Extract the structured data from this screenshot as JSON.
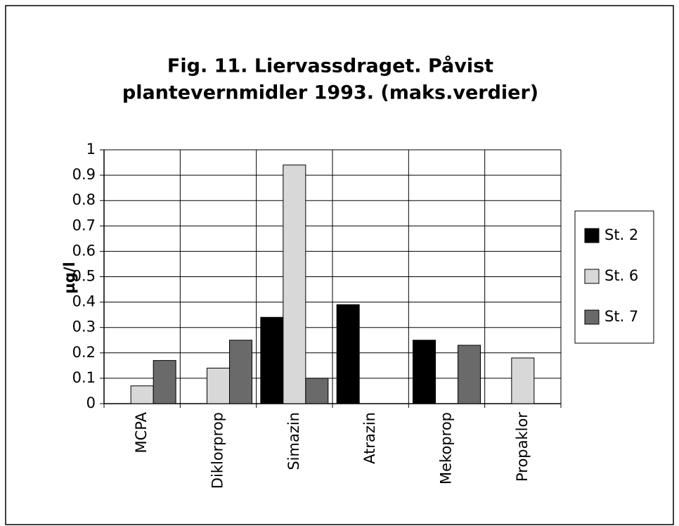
{
  "chart_data": {
    "type": "bar",
    "title": [
      "Fig. 11. Liervassdraget. Påvist",
      "plantevernmidler 1993. (maks.verdier)"
    ],
    "y_label": "µg/l",
    "categories": [
      "MCPA",
      "Diklorprop",
      "Simazin",
      "Atrazin",
      "Mekoprop",
      "Propaklor"
    ],
    "series": [
      {
        "name": "St. 2",
        "color": "#000000",
        "values": [
          null,
          null,
          0.34,
          0.39,
          0.25,
          null
        ]
      },
      {
        "name": "St. 6",
        "color": "#d8d8d8",
        "values": [
          0.07,
          0.14,
          0.94,
          null,
          null,
          0.18
        ]
      },
      {
        "name": "St. 7",
        "color": "#6a6a6a",
        "values": [
          0.17,
          0.25,
          0.1,
          null,
          0.23,
          null
        ]
      }
    ],
    "ylim": [
      0,
      1
    ],
    "yticks": [
      0,
      0.1,
      0.2,
      0.3,
      0.4,
      0.5,
      0.6,
      0.7,
      0.8,
      0.9,
      1
    ],
    "grid": true,
    "legend": "right"
  }
}
